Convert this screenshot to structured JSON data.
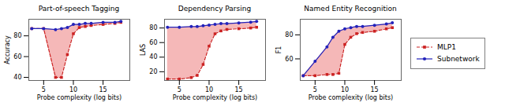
{
  "chart_data": [
    {
      "type": "line",
      "title": "Part-of-speech Tagging",
      "xlabel": "Probe complexity (log bits)",
      "ylabel": "Accuracy",
      "x": [
        3,
        5,
        7,
        8,
        9,
        10,
        11,
        12,
        13,
        15,
        17,
        18
      ],
      "xlim": [
        2.5,
        19.5
      ],
      "xticks": [
        5,
        10,
        15
      ],
      "ylim": [
        37,
        96
      ],
      "yticks": [
        40,
        60,
        80
      ],
      "color": "#f5b8b8",
      "series": [
        {
          "name": "MLP1",
          "color": "#cc2222",
          "line_style": "dashed",
          "marker": "square",
          "values": [
            87,
            87,
            40,
            40,
            62,
            82,
            88,
            89,
            90,
            91,
            92,
            93
          ]
        },
        {
          "name": "Subnetwork",
          "color": "#2222bb",
          "line_style": "solid",
          "marker": "circle",
          "values": [
            87,
            87,
            86,
            87,
            88,
            91,
            91,
            92,
            92,
            93,
            93,
            94
          ]
        }
      ]
    },
    {
      "type": "line",
      "title": "Dependency Parsing",
      "xlabel": "Probe complexity (log bits)",
      "ylabel": "LAS",
      "x": [
        3,
        5,
        7,
        8,
        9,
        10,
        11,
        12,
        13,
        15,
        17,
        18
      ],
      "xlim": [
        2.5,
        19.5
      ],
      "xticks": [
        5,
        10,
        15
      ],
      "ylim": [
        8,
        92
      ],
      "yticks": [
        20,
        40,
        60,
        80
      ],
      "color": "#f5b8b8",
      "series": [
        {
          "name": "MLP1",
          "color": "#cc2222",
          "line_style": "dashed",
          "marker": "square",
          "values": [
            10,
            10,
            12,
            15,
            30,
            55,
            72,
            76,
            78,
            79,
            80,
            81
          ]
        },
        {
          "name": "Subnetwork",
          "color": "#2222bb",
          "line_style": "solid",
          "marker": "circle",
          "values": [
            81,
            81,
            82,
            82,
            83,
            84,
            85,
            86,
            86,
            87,
            88,
            89
          ]
        }
      ]
    },
    {
      "type": "line",
      "title": "Named Entity Recognition",
      "xlabel": "Probe complexity (log bits)",
      "ylabel": "F1",
      "x": [
        3,
        5,
        7,
        8,
        9,
        10,
        11,
        12,
        13,
        15,
        17,
        18
      ],
      "xlim": [
        2.5,
        19.5
      ],
      "xticks": [
        5,
        10,
        15
      ],
      "ylim": [
        42,
        93
      ],
      "yticks": [
        60,
        80
      ],
      "color": "#f5b8b8",
      "legend": "right",
      "series": [
        {
          "name": "MLP1",
          "color": "#cc2222",
          "line_style": "dashed",
          "marker": "square",
          "values": [
            46,
            46,
            47,
            47,
            48,
            72,
            78,
            81,
            82,
            83,
            85,
            86
          ]
        },
        {
          "name": "Subnetwork",
          "color": "#2222bb",
          "line_style": "solid",
          "marker": "circle",
          "values": [
            46,
            58,
            70,
            78,
            83,
            85,
            86,
            87,
            87,
            88,
            89,
            90
          ]
        }
      ]
    }
  ]
}
